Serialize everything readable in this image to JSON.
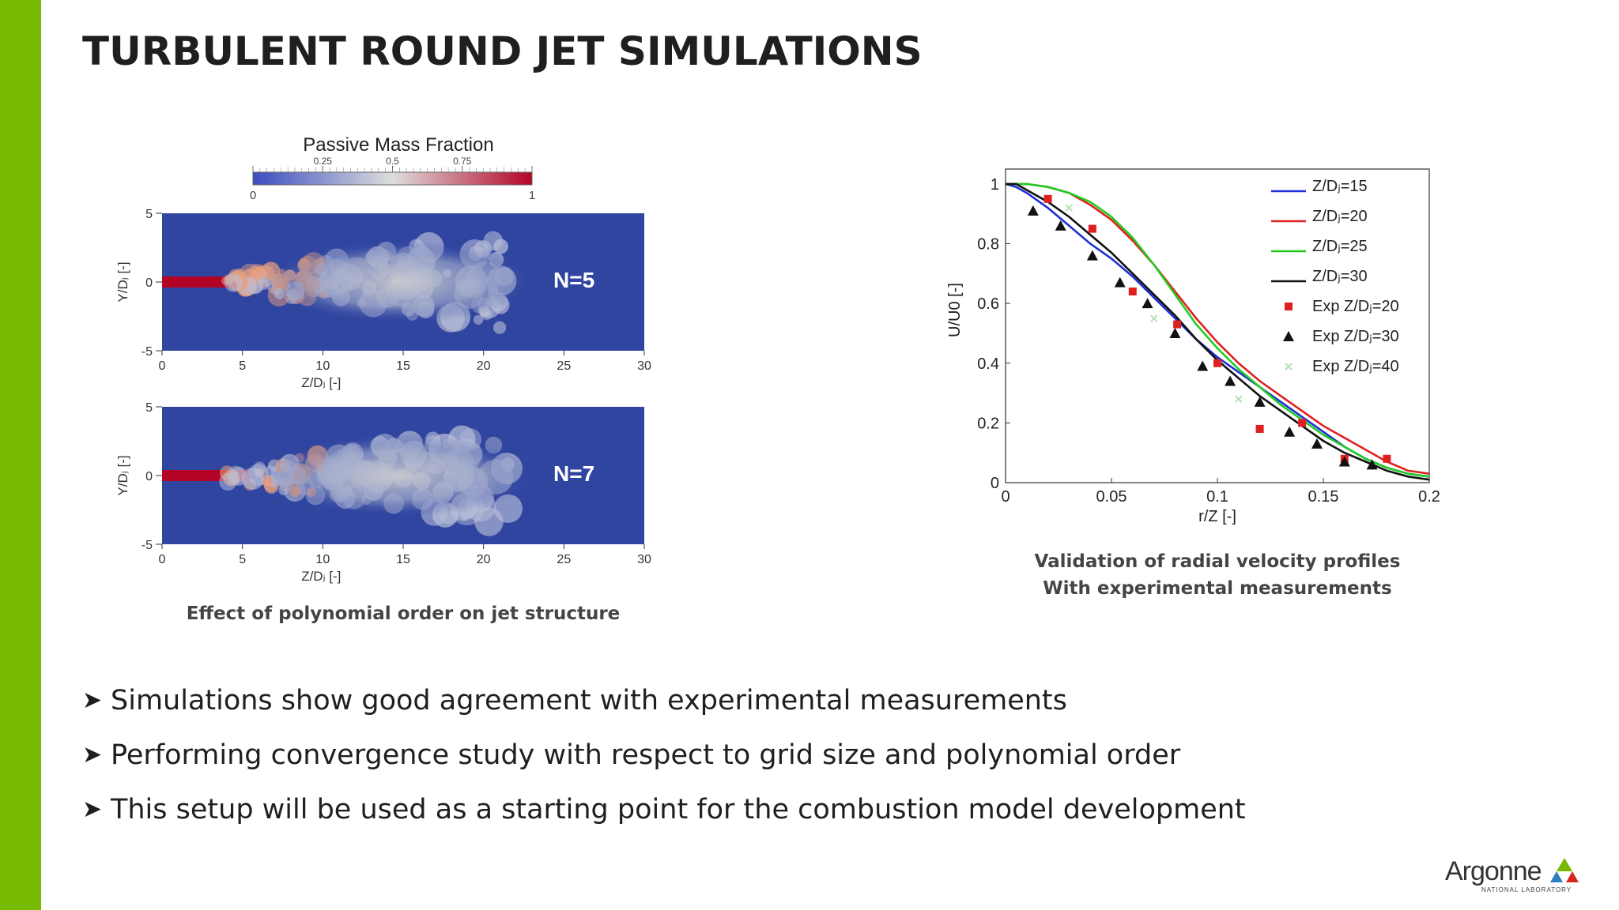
{
  "slide": {
    "title": "TURBULENT ROUND JET SIMULATIONS",
    "bullets": [
      "Simulations show good agreement with experimental measurements",
      "Performing convergence study with respect to grid size and polynomial order",
      "This setup will be used as a starting point for the combustion model development"
    ],
    "bullet_icon": "arrow-bullet-icon",
    "accent_color": "#76b900"
  },
  "left_figure": {
    "colorbar_title": "Passive Mass Fraction",
    "colorbar_ticks": [
      "0",
      "0.25",
      "0.5",
      "0.75",
      "1"
    ],
    "colorbar_colors": [
      "#3b4cc0",
      "#dddddd",
      "#b40426"
    ],
    "field_background": "#3045a0",
    "panels": [
      {
        "label": "N=5",
        "ylabel": "Y/Dⱼ [-]",
        "xlabel": "Z/Dⱼ [-]",
        "yticks": [
          "5",
          "0",
          "-5"
        ],
        "xticks": [
          "0",
          "5",
          "10",
          "15",
          "20",
          "25",
          "30"
        ]
      },
      {
        "label": "N=7",
        "ylabel": "Y/Dⱼ [-]",
        "xlabel": "Z/Dⱼ [-]",
        "yticks": [
          "5",
          "0",
          "-5"
        ],
        "xticks": [
          "0",
          "5",
          "10",
          "15",
          "20",
          "25",
          "30"
        ]
      }
    ],
    "caption": "Effect of polynomial order  on jet structure"
  },
  "right_figure": {
    "caption_line1": "Validation of radial velocity profiles",
    "caption_line2": "With experimental measurements"
  },
  "chart_data": {
    "type": "line",
    "xlabel": "r/Z [-]",
    "ylabel": "U/U0 [-]",
    "xlim": [
      0,
      0.2
    ],
    "ylim": [
      0,
      1.05
    ],
    "xticks": [
      0,
      0.05,
      0.1,
      0.15,
      0.2
    ],
    "xtick_labels": [
      "0",
      "0.05",
      "0.1",
      "0.15",
      "0.2"
    ],
    "yticks": [
      0,
      0.2,
      0.4,
      0.6,
      0.8,
      1
    ],
    "ytick_labels": [
      "0",
      "0.2",
      "0.4",
      "0.6",
      "0.8",
      "1"
    ],
    "legend_position": "top-right",
    "grid": false,
    "series": [
      {
        "name": "Z/Dⱼ=15",
        "kind": "line",
        "color": "#1f2fd6",
        "x": [
          0,
          0.005,
          0.01,
          0.02,
          0.03,
          0.04,
          0.05,
          0.06,
          0.07,
          0.08,
          0.09,
          0.1,
          0.11,
          0.12,
          0.13,
          0.14,
          0.15,
          0.16,
          0.17,
          0.18,
          0.19,
          0.2
        ],
        "y": [
          1.0,
          0.99,
          0.97,
          0.92,
          0.86,
          0.8,
          0.75,
          0.69,
          0.62,
          0.55,
          0.48,
          0.42,
          0.37,
          0.32,
          0.27,
          0.22,
          0.17,
          0.12,
          0.08,
          0.05,
          0.03,
          0.02
        ]
      },
      {
        "name": "Z/Dⱼ=20",
        "kind": "line",
        "color": "#e02020",
        "x": [
          0,
          0.005,
          0.01,
          0.02,
          0.03,
          0.04,
          0.05,
          0.06,
          0.07,
          0.08,
          0.09,
          0.1,
          0.11,
          0.12,
          0.13,
          0.14,
          0.15,
          0.16,
          0.17,
          0.18,
          0.19,
          0.2
        ],
        "y": [
          1.0,
          1.0,
          1.0,
          0.99,
          0.97,
          0.93,
          0.88,
          0.81,
          0.73,
          0.64,
          0.55,
          0.47,
          0.4,
          0.34,
          0.29,
          0.24,
          0.19,
          0.15,
          0.11,
          0.07,
          0.04,
          0.03
        ]
      },
      {
        "name": "Z/Dⱼ=25",
        "kind": "line",
        "color": "#22cc22",
        "x": [
          0,
          0.005,
          0.01,
          0.02,
          0.03,
          0.04,
          0.05,
          0.06,
          0.07,
          0.08,
          0.09,
          0.1,
          0.11,
          0.12,
          0.13,
          0.14,
          0.15,
          0.16,
          0.17,
          0.18,
          0.19,
          0.2
        ],
        "y": [
          1.0,
          1.0,
          1.0,
          0.99,
          0.97,
          0.94,
          0.89,
          0.82,
          0.73,
          0.63,
          0.53,
          0.45,
          0.38,
          0.32,
          0.26,
          0.21,
          0.16,
          0.12,
          0.08,
          0.05,
          0.03,
          0.02
        ]
      },
      {
        "name": "Z/Dⱼ=30",
        "kind": "line",
        "color": "#111111",
        "x": [
          0,
          0.005,
          0.01,
          0.02,
          0.03,
          0.04,
          0.05,
          0.06,
          0.07,
          0.08,
          0.09,
          0.1,
          0.11,
          0.12,
          0.13,
          0.14,
          0.15,
          0.16,
          0.17,
          0.18,
          0.19,
          0.2
        ],
        "y": [
          1.0,
          1.0,
          0.98,
          0.94,
          0.89,
          0.83,
          0.77,
          0.7,
          0.63,
          0.56,
          0.48,
          0.41,
          0.35,
          0.29,
          0.24,
          0.19,
          0.14,
          0.1,
          0.07,
          0.04,
          0.02,
          0.01
        ]
      },
      {
        "name": "Exp Z/Dⱼ=20",
        "kind": "marker",
        "marker": "square",
        "color": "#e02020",
        "x": [
          0.02,
          0.041,
          0.06,
          0.081,
          0.1,
          0.12,
          0.14,
          0.16,
          0.18
        ],
        "y": [
          0.95,
          0.85,
          0.64,
          0.53,
          0.4,
          0.18,
          0.2,
          0.08,
          0.08
        ]
      },
      {
        "name": "Exp Z/Dⱼ=30",
        "kind": "marker",
        "marker": "triangle",
        "color": "#111111",
        "x": [
          0.013,
          0.026,
          0.041,
          0.054,
          0.067,
          0.08,
          0.093,
          0.106,
          0.12,
          0.134,
          0.147,
          0.16,
          0.173
        ],
        "y": [
          0.91,
          0.86,
          0.76,
          0.67,
          0.6,
          0.5,
          0.39,
          0.34,
          0.27,
          0.17,
          0.13,
          0.07,
          0.06
        ]
      },
      {
        "name": "Exp Z/Dⱼ=40",
        "kind": "marker",
        "marker": "cross",
        "color": "#b8e0b8",
        "x": [
          0.03,
          0.07,
          0.11
        ],
        "y": [
          0.92,
          0.55,
          0.28
        ]
      }
    ]
  },
  "logo": {
    "name": "Argonne",
    "subtitle": "NATIONAL LABORATORY",
    "colors": [
      "#2e7dc1",
      "#76b900",
      "#d7261e"
    ]
  }
}
